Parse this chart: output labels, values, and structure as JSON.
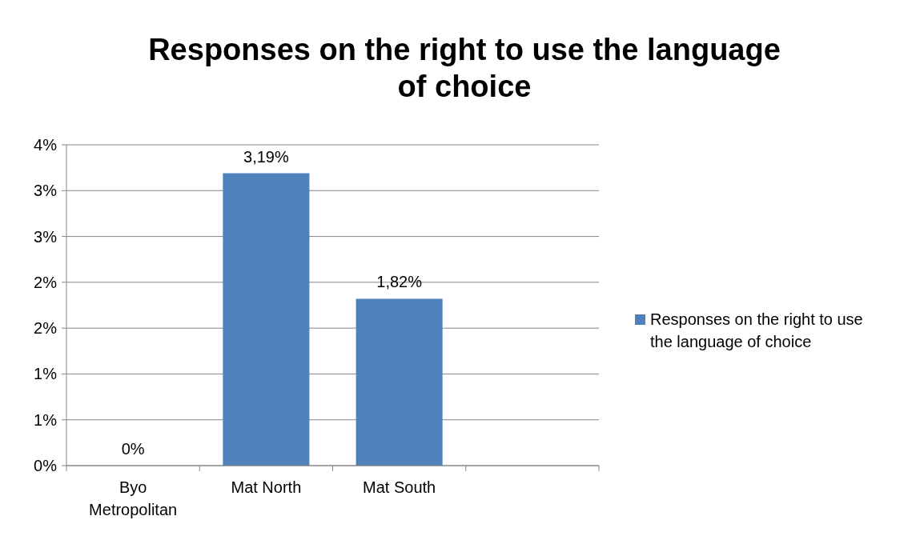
{
  "chart_data": {
    "type": "bar",
    "title": "Responses on the right to use the language of choice",
    "categories": [
      "Byo Metropolitan",
      "Mat North",
      "Mat South",
      null
    ],
    "series": [
      {
        "name": "Responses on the right to use the language of choice",
        "color": "#4f81bd",
        "values": [
          0,
          3.19,
          1.82,
          null
        ],
        "value_labels": [
          "0%",
          "3,19%",
          "1,82%",
          null
        ]
      }
    ],
    "ylim": [
      0,
      3.5
    ],
    "yticks": [
      {
        "value": 0,
        "label": "0%"
      },
      {
        "value": 0.5,
        "label": "1%"
      },
      {
        "value": 1,
        "label": "1%"
      },
      {
        "value": 1.5,
        "label": "2%"
      },
      {
        "value": 2,
        "label": "2%"
      },
      {
        "value": 2.5,
        "label": "3%"
      },
      {
        "value": 3,
        "label": "3%"
      },
      {
        "value": 3.5,
        "label": "4%"
      }
    ],
    "grid": "y",
    "legend": "right"
  }
}
